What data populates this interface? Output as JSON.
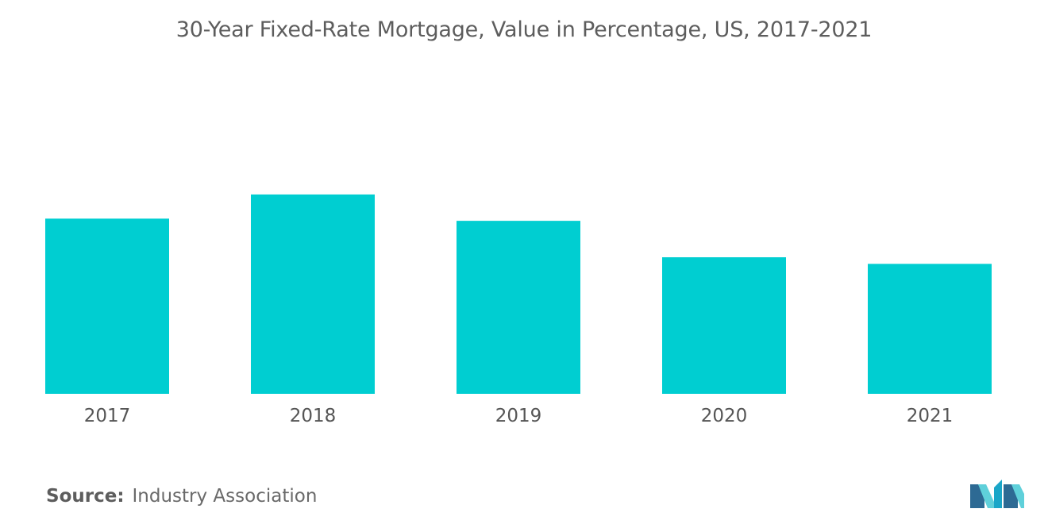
{
  "chart_data": {
    "type": "bar",
    "title": "30-Year Fixed-Rate Mortgage, Value in Percentage, US, 2017-2021",
    "categories": [
      "2017",
      "2018",
      "2019",
      "2020",
      "2021"
    ],
    "values": [
      3.99,
      4.54,
      3.94,
      3.11,
      2.96
    ],
    "ylim": [
      0,
      5.2
    ],
    "xlabel": "",
    "ylabel": "",
    "grid": false,
    "bar_color": "#00ced1"
  },
  "footer": {
    "source_label": "Source:",
    "source_text": "Industry Association"
  },
  "logo": {
    "icon": "mordor-intelligence-logo-icon",
    "colors": [
      "#1aa6c8",
      "#5fd0da",
      "#2d6a94"
    ]
  }
}
